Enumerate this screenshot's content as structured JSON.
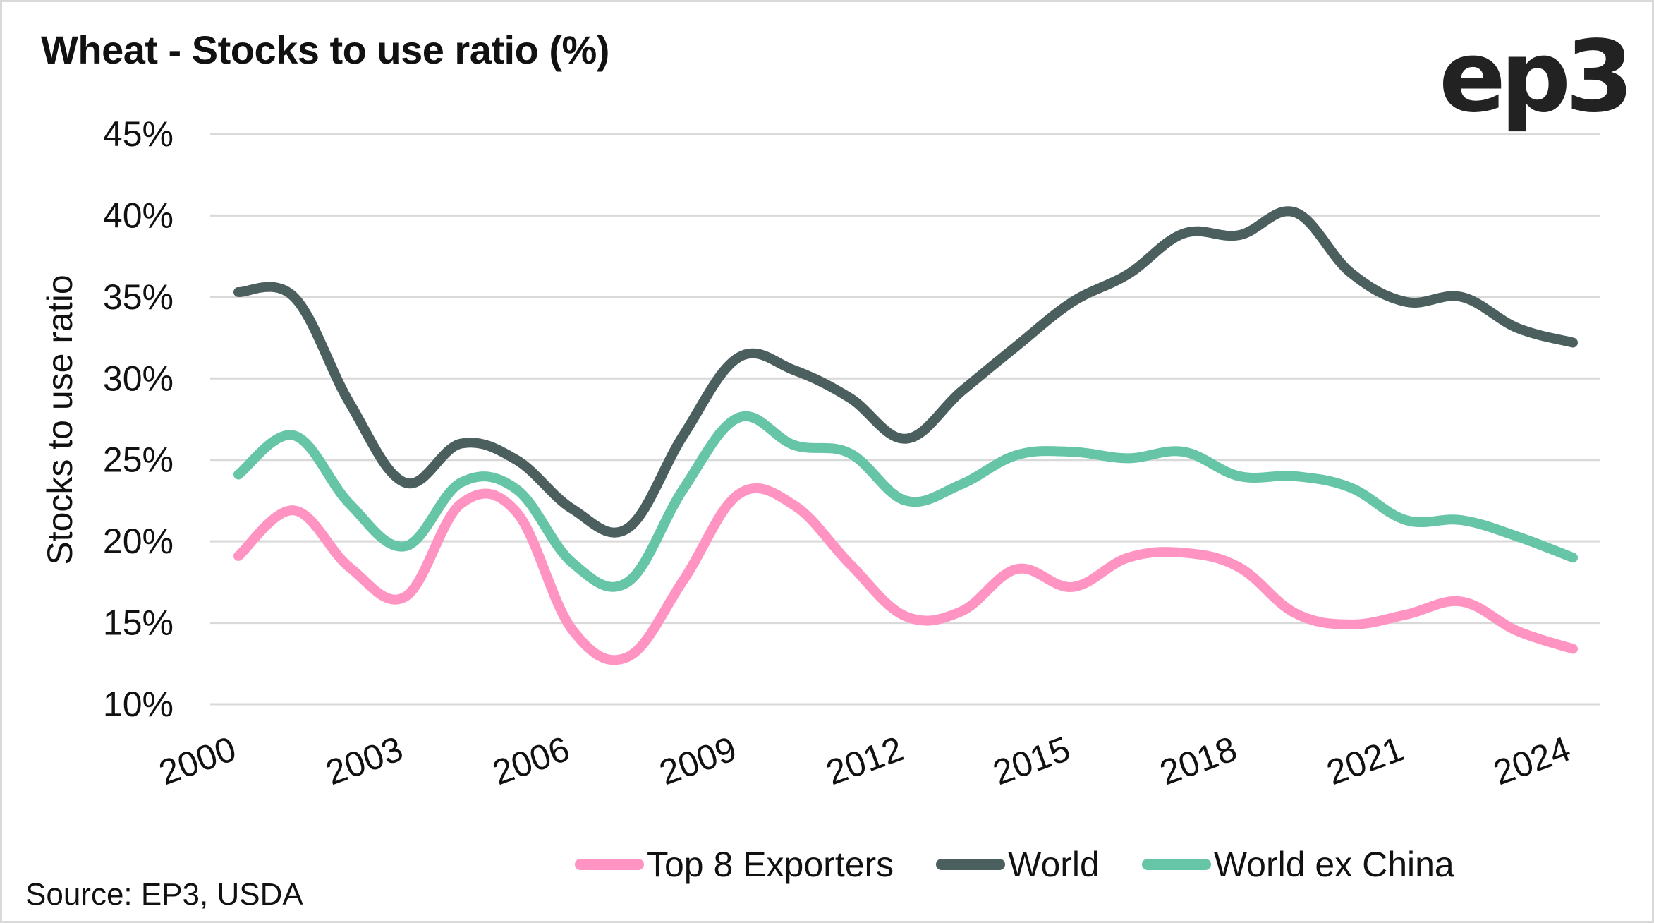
{
  "title": "Wheat - Stocks to use ratio (%)",
  "logo": "ep3",
  "source": "Source: EP3, USDA",
  "legend": [
    {
      "label": "Top 8 Exporters",
      "color": "#ff94c2"
    },
    {
      "label": "World",
      "color": "#4b5f5f"
    },
    {
      "label": "World ex China",
      "color": "#65c5a6"
    }
  ],
  "chart_data": {
    "type": "line",
    "title": "Wheat - Stocks to use ratio (%)",
    "xlabel": "",
    "ylabel": "Stocks to use ratio",
    "ylim": [
      10,
      45
    ],
    "yticks": [
      10,
      15,
      20,
      25,
      30,
      35,
      40,
      45
    ],
    "ytick_labels": [
      "10%",
      "15%",
      "20%",
      "25%",
      "30%",
      "35%",
      "40%",
      "45%"
    ],
    "xlim": [
      2000,
      2024
    ],
    "xtick_labels": [
      "2000",
      "2003",
      "2006",
      "2009",
      "2012",
      "2015",
      "2018",
      "2021",
      "2024"
    ],
    "grid": true,
    "legend_position": "bottom-right",
    "x": [
      2000,
      2001,
      2002,
      2003,
      2004,
      2005,
      2006,
      2007,
      2008,
      2009,
      2010,
      2011,
      2012,
      2013,
      2014,
      2015,
      2016,
      2017,
      2018,
      2019,
      2020,
      2021,
      2022,
      2023,
      2024
    ],
    "series": [
      {
        "name": "Top 8 Exporters",
        "color": "#ff94c2",
        "values": [
          19.1,
          21.9,
          18.4,
          16.6,
          22.3,
          21.8,
          14.6,
          12.9,
          17.6,
          22.9,
          22.2,
          18.6,
          15.4,
          15.7,
          18.3,
          17.2,
          19.0,
          19.3,
          18.4,
          15.6,
          14.9,
          15.5,
          16.3,
          14.5,
          13.4
        ]
      },
      {
        "name": "World",
        "color": "#4b5f5f",
        "values": [
          35.3,
          35.0,
          28.5,
          23.6,
          26.0,
          25.0,
          22.0,
          20.8,
          26.5,
          31.3,
          30.5,
          28.8,
          26.3,
          29.2,
          32.0,
          34.7,
          36.4,
          38.9,
          38.8,
          40.2,
          36.5,
          34.7,
          35.0,
          33.1,
          32.2
        ]
      },
      {
        "name": "World ex China",
        "color": "#65c5a6",
        "values": [
          24.1,
          26.5,
          22.3,
          19.7,
          23.6,
          23.2,
          18.7,
          17.5,
          23.2,
          27.6,
          25.9,
          25.4,
          22.5,
          23.5,
          25.3,
          25.5,
          25.1,
          25.5,
          24.0,
          24.0,
          23.3,
          21.3,
          21.3,
          20.3,
          19.0
        ]
      }
    ]
  }
}
